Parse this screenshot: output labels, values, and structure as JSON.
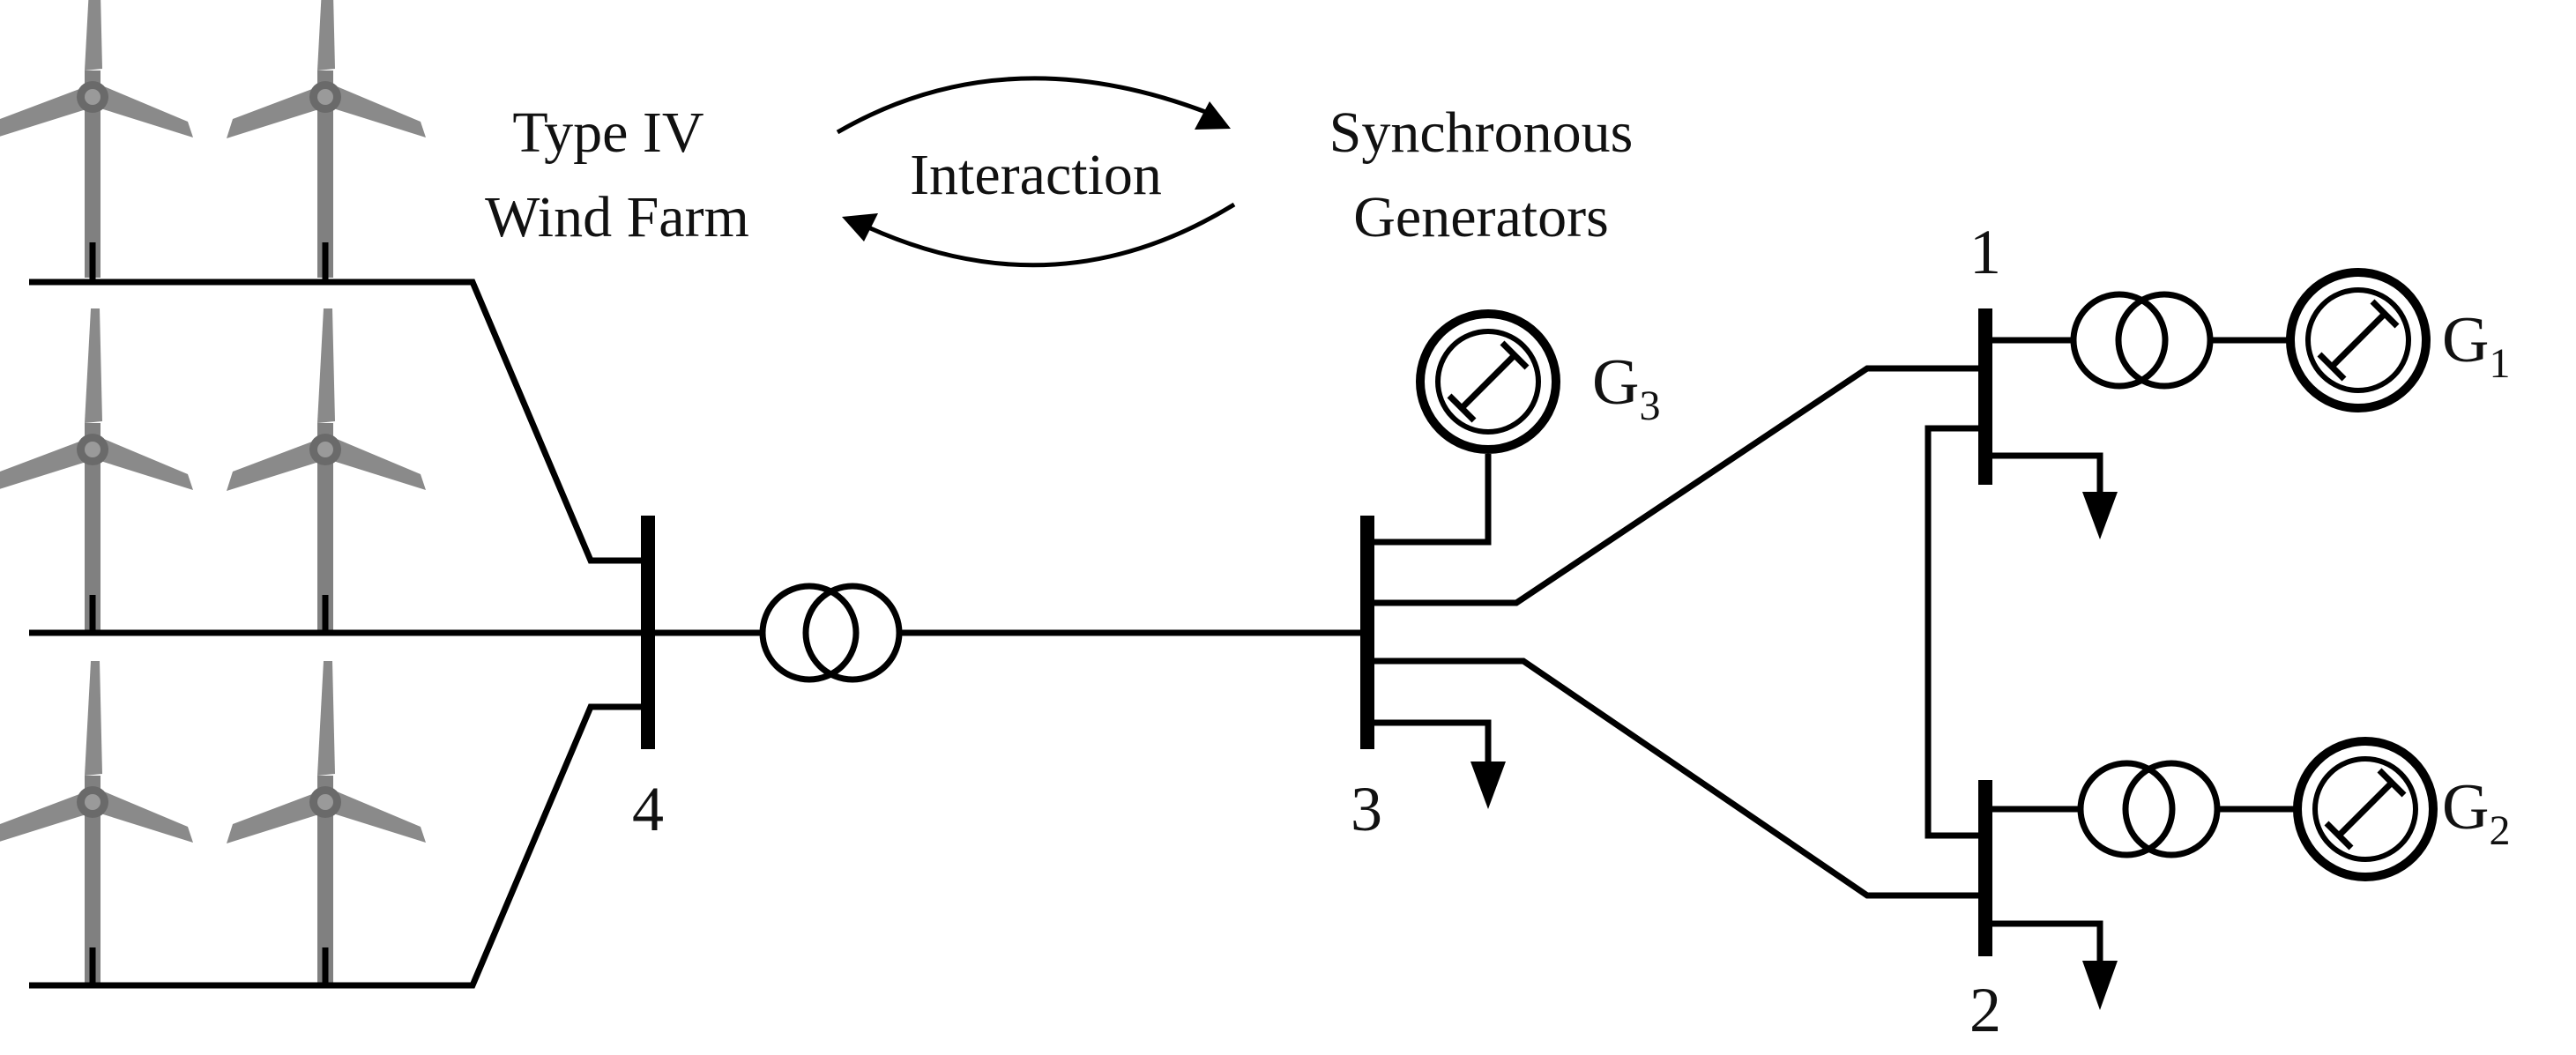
{
  "labels": {
    "wind_farm_line1": "Type IV",
    "wind_farm_line2": "Wind Farm",
    "interaction": "Interaction",
    "sync_line1": "Synchronous",
    "sync_line2": "Generators"
  },
  "buses": {
    "bus1": "1",
    "bus2": "2",
    "bus3": "3",
    "bus4": "4"
  },
  "generators": {
    "g1": {
      "letter": "G",
      "sub": "1"
    },
    "g2": {
      "letter": "G",
      "sub": "2"
    },
    "g3": {
      "letter": "G",
      "sub": "3"
    }
  },
  "colors": {
    "line": "#000000",
    "turbine": "#808080",
    "turbine_dark": "#6a6a6a"
  },
  "icons": {
    "turbine": "wind-turbine-icon",
    "transformer": "transformer-icon",
    "generator": "generator-icon",
    "load": "load-arrow-icon"
  }
}
